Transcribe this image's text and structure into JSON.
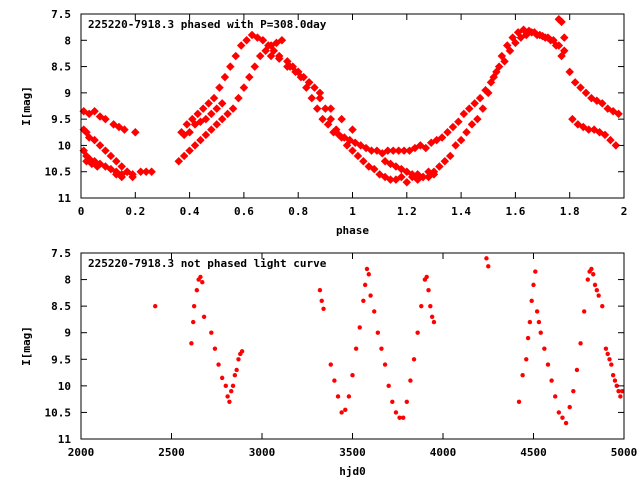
{
  "colors": {
    "points": "#ff0000",
    "axes": "#000000",
    "background": "#ffffff"
  },
  "chart_data": [
    {
      "type": "scatter",
      "title": "225220-7918.3 phased with P=308.0day",
      "xlabel": "phase",
      "ylabel": "I[mag]",
      "xlim": [
        0,
        2
      ],
      "ylim": [
        7.5,
        11
      ],
      "y_inverted": true,
      "grid": false,
      "xticks": [
        0,
        0.2,
        0.4,
        0.6,
        0.8,
        1,
        1.2,
        1.4,
        1.6,
        1.8,
        2
      ],
      "xtick_labels": [
        "0",
        "0.2",
        "0.4",
        "0.6",
        "0.8",
        "1",
        "1.2",
        "1.4",
        "1.6",
        "1.8",
        "2"
      ],
      "yticks": [
        7.5,
        8,
        8.5,
        9,
        9.5,
        10,
        10.5,
        11
      ],
      "ytick_labels": [
        "7.5",
        "8",
        "8.5",
        "9",
        "9.5",
        "10",
        "10.5",
        "11"
      ],
      "series": [
        {
          "name": "",
          "marker": "star",
          "x": [
            0.01,
            0.02,
            0.03,
            0.05,
            0.07,
            0.09,
            0.11,
            0.13,
            0.15,
            0.17,
            0.19,
            0.22,
            0.24,
            0.26,
            0.01,
            0.02,
            0.03,
            0.05,
            0.07,
            0.09,
            0.11,
            0.13,
            0.15,
            0.17,
            0.01,
            0.03,
            0.05,
            0.07,
            0.09,
            0.12,
            0.14,
            0.16,
            0.2,
            0.02,
            0.04,
            0.06,
            0.13,
            0.15,
            0.19,
            0.36,
            0.38,
            0.4,
            0.42,
            0.44,
            0.46,
            0.48,
            0.5,
            0.52,
            0.54,
            0.56,
            0.58,
            0.6,
            0.62,
            0.64,
            0.66,
            0.68,
            0.7,
            0.72,
            0.74,
            0.37,
            0.39,
            0.41,
            0.43,
            0.45,
            0.47,
            0.49,
            0.51,
            0.53,
            0.55,
            0.57,
            0.59,
            0.61,
            0.63,
            0.65,
            0.67,
            0.69,
            0.71,
            0.73,
            0.76,
            0.78,
            0.8,
            0.82,
            0.84,
            0.86,
            0.88,
            0.9,
            0.92,
            0.94,
            0.96,
            0.98,
            1.0,
            1.02,
            1.04,
            1.06,
            1.08,
            1.1,
            1.12,
            1.14,
            0.77,
            0.79,
            0.81,
            0.83,
            0.85,
            0.87,
            0.89,
            0.91,
            0.93,
            0.95,
            0.97,
            0.99,
            1.01,
            1.03,
            1.05,
            1.07,
            1.09,
            1.11,
            1.13,
            1.15,
            1.16,
            1.18,
            1.2,
            1.22,
            1.24,
            1.26,
            1.28,
            1.3,
            1.32,
            1.34,
            1.36,
            1.38,
            1.4,
            1.42,
            1.44,
            1.46,
            1.48,
            1.5,
            1.52,
            1.54,
            1.17,
            1.19,
            1.21,
            1.23,
            1.25,
            1.27,
            1.29,
            1.31,
            1.33,
            1.35,
            1.37,
            1.39,
            1.41,
            1.43,
            1.45,
            1.47,
            1.49,
            1.51,
            1.53,
            1.12,
            1.14,
            1.16,
            1.18,
            1.2,
            1.22,
            1.24,
            1.26,
            1.28,
            1.3,
            1.55,
            1.57,
            1.59,
            1.61,
            1.63,
            1.65,
            1.67,
            1.69,
            1.71,
            1.73,
            1.75,
            1.77,
            1.56,
            1.58,
            1.6,
            1.62,
            1.64,
            1.66,
            1.68,
            1.7,
            1.72,
            1.74,
            1.76,
            1.78,
            1.76,
            1.77,
            1.78,
            1.8,
            1.82,
            1.84,
            1.86,
            1.88,
            1.9,
            1.92,
            1.94,
            1.96,
            1.98,
            1.81,
            1.83,
            1.85,
            1.87,
            1.89,
            1.91,
            1.93,
            1.95,
            1.97,
            0.38,
            0.4,
            0.42,
            0.44,
            0.46,
            0.48,
            0.5,
            0.52,
            0.7,
            0.73,
            0.76,
            0.8,
            0.84,
            0.88,
            0.92,
            0.96,
            1.0
          ],
          "y": [
            10.1,
            10.2,
            10.25,
            10.3,
            10.35,
            10.4,
            10.45,
            10.5,
            10.55,
            10.5,
            10.55,
            10.5,
            10.5,
            10.5,
            9.7,
            9.75,
            9.85,
            9.9,
            10.0,
            10.1,
            10.2,
            10.3,
            10.4,
            10.5,
            9.35,
            9.4,
            9.35,
            9.45,
            9.5,
            9.6,
            9.65,
            9.7,
            9.75,
            10.3,
            10.35,
            10.4,
            10.55,
            10.6,
            10.6,
            10.3,
            10.2,
            10.1,
            10.0,
            9.9,
            9.8,
            9.7,
            9.6,
            9.5,
            9.4,
            9.3,
            9.1,
            8.9,
            8.7,
            8.5,
            8.3,
            8.2,
            8.1,
            8.05,
            8.0,
            9.75,
            9.6,
            9.5,
            9.4,
            9.3,
            9.2,
            9.1,
            8.9,
            8.7,
            8.5,
            8.3,
            8.1,
            8.0,
            7.9,
            7.95,
            8.0,
            8.1,
            8.2,
            8.3,
            8.4,
            8.5,
            8.6,
            8.7,
            8.8,
            8.9,
            9.1,
            9.3,
            9.5,
            9.7,
            9.85,
            10.0,
            10.1,
            10.2,
            10.3,
            10.4,
            10.45,
            10.55,
            10.6,
            10.65,
            8.5,
            8.6,
            8.7,
            8.9,
            9.1,
            9.3,
            9.5,
            9.6,
            9.75,
            9.8,
            9.85,
            9.9,
            9.95,
            10.0,
            10.05,
            10.1,
            10.1,
            10.15,
            10.1,
            10.1,
            10.65,
            10.6,
            10.7,
            10.6,
            10.65,
            10.6,
            10.5,
            10.5,
            10.4,
            10.3,
            10.2,
            10.0,
            9.9,
            9.75,
            9.6,
            9.5,
            9.3,
            9.0,
            8.7,
            8.5,
            10.1,
            10.1,
            10.1,
            10.05,
            10.0,
            10.05,
            9.95,
            9.9,
            9.85,
            9.75,
            9.65,
            9.55,
            9.4,
            9.3,
            9.2,
            9.1,
            8.95,
            8.8,
            8.6,
            10.3,
            10.35,
            10.4,
            10.45,
            10.5,
            10.55,
            10.55,
            10.6,
            10.6,
            10.55,
            8.3,
            8.1,
            7.95,
            7.85,
            7.8,
            7.82,
            7.85,
            7.9,
            7.95,
            8.0,
            8.1,
            8.3,
            8.4,
            8.2,
            8.05,
            7.95,
            7.9,
            7.85,
            7.9,
            7.92,
            7.95,
            8.0,
            8.1,
            8.2,
            7.6,
            7.65,
            7.95,
            8.6,
            8.8,
            8.9,
            9.0,
            9.1,
            9.15,
            9.2,
            9.3,
            9.35,
            9.4,
            9.5,
            9.6,
            9.65,
            9.7,
            9.7,
            9.75,
            9.8,
            9.9,
            10.0,
            9.8,
            9.75,
            9.6,
            9.55,
            9.5,
            9.4,
            9.3,
            9.2,
            8.3,
            8.35,
            8.5,
            8.6,
            8.8,
            9.0,
            9.3,
            9.5,
            9.7
          ]
        }
      ]
    },
    {
      "type": "scatter",
      "title": "225220-7918.3 not phased light curve",
      "xlabel": "hjd0",
      "ylabel": "I[mag]",
      "xlim": [
        2000,
        5000
      ],
      "ylim": [
        7.5,
        11
      ],
      "y_inverted": true,
      "grid": false,
      "xticks": [
        2000,
        2500,
        3000,
        3500,
        4000,
        4500,
        5000
      ],
      "xtick_labels": [
        "2000",
        "2500",
        "3000",
        "3500",
        "4000",
        "4500",
        "5000"
      ],
      "yticks": [
        7.5,
        8,
        8.5,
        9,
        9.5,
        10,
        10.5,
        11
      ],
      "ytick_labels": [
        "7.5",
        "8",
        "8.5",
        "9",
        "9.5",
        "10",
        "10.5",
        "11"
      ],
      "series": [
        {
          "name": "",
          "marker": "dot",
          "x": [
            2410,
            2610,
            2620,
            2625,
            2640,
            2650,
            2660,
            2670,
            2680,
            2720,
            2740,
            2760,
            2780,
            2800,
            2810,
            2820,
            2830,
            2840,
            2850,
            2860,
            2870,
            2880,
            2890,
            3320,
            3330,
            3340,
            3380,
            3400,
            3420,
            3440,
            3460,
            3480,
            3500,
            3520,
            3540,
            3560,
            3570,
            3580,
            3590,
            3600,
            3620,
            3640,
            3660,
            3680,
            3700,
            3720,
            3740,
            3760,
            3780,
            3800,
            3820,
            3840,
            3860,
            3880,
            3900,
            3910,
            3920,
            3930,
            3940,
            3950,
            4240,
            4250,
            4420,
            4440,
            4460,
            4470,
            4480,
            4490,
            4500,
            4510,
            4520,
            4530,
            4540,
            4560,
            4580,
            4600,
            4620,
            4640,
            4660,
            4680,
            4700,
            4720,
            4740,
            4760,
            4780,
            4800,
            4810,
            4820,
            4830,
            4840,
            4850,
            4860,
            4880,
            4900,
            4910,
            4920,
            4930,
            4940,
            4950,
            4960,
            4970,
            4980,
            4990
          ],
          "y": [
            8.5,
            9.2,
            8.8,
            8.5,
            8.2,
            8.0,
            7.95,
            8.05,
            8.7,
            9.0,
            9.3,
            9.6,
            9.85,
            10.0,
            10.2,
            10.3,
            10.1,
            10.0,
            9.8,
            9.7,
            9.5,
            9.4,
            9.35,
            8.2,
            8.4,
            8.55,
            9.6,
            9.9,
            10.2,
            10.5,
            10.45,
            10.2,
            9.8,
            9.3,
            8.9,
            8.4,
            8.1,
            7.8,
            7.9,
            8.3,
            8.6,
            9.0,
            9.3,
            9.6,
            10.0,
            10.3,
            10.5,
            10.6,
            10.6,
            10.3,
            9.9,
            9.5,
            9.0,
            8.5,
            8.0,
            7.95,
            8.2,
            8.5,
            8.7,
            8.8,
            7.6,
            7.75,
            10.3,
            9.8,
            9.5,
            9.1,
            8.8,
            8.4,
            8.1,
            7.85,
            8.6,
            8.8,
            9.0,
            9.3,
            9.6,
            9.9,
            10.2,
            10.5,
            10.6,
            10.7,
            10.4,
            10.1,
            9.7,
            9.2,
            8.6,
            8.0,
            7.85,
            7.8,
            7.9,
            8.1,
            8.2,
            8.3,
            8.5,
            9.3,
            9.4,
            9.5,
            9.6,
            9.8,
            9.9,
            10.0,
            10.1,
            10.2,
            10.1
          ]
        }
      ]
    }
  ]
}
